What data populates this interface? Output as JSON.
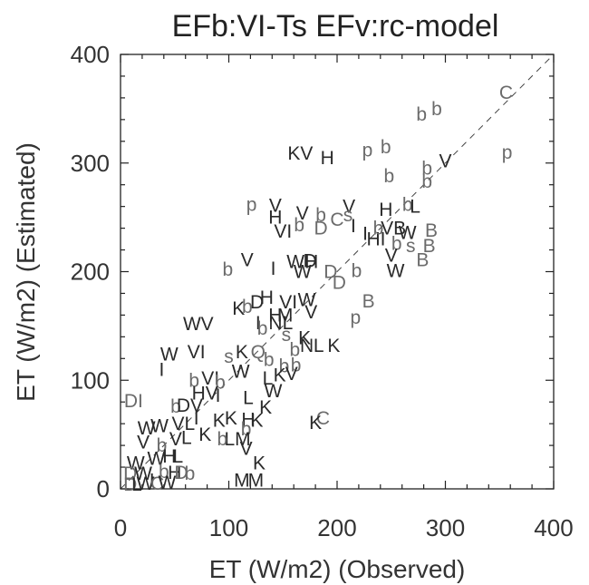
{
  "chart_data": {
    "type": "scatter",
    "title": "EFb:VI-Ts  EFv:rc-model",
    "xlabel": "ET (W/m2)  (Observed)",
    "ylabel": "ET (W/m2)  (Estimated)",
    "xlim": [
      0,
      400
    ],
    "ylim": [
      0,
      400
    ],
    "xticks": [
      0,
      100,
      200,
      300,
      400
    ],
    "yticks": [
      0,
      100,
      200,
      300,
      400
    ],
    "reference_line": "1:1 dashed",
    "grid": false,
    "colors": {
      "dark": "#2a2a2a",
      "gray": "#6b6b6b"
    },
    "points": [
      {
        "label": "C",
        "x": 356,
        "y": 365,
        "shade": "gray"
      },
      {
        "label": "p",
        "x": 357,
        "y": 310,
        "shade": "gray"
      },
      {
        "label": "b",
        "x": 278,
        "y": 345,
        "shade": "gray"
      },
      {
        "label": "b",
        "x": 292,
        "y": 350,
        "shade": "gray"
      },
      {
        "label": "b",
        "x": 245,
        "y": 315,
        "shade": "gray"
      },
      {
        "label": "p",
        "x": 228,
        "y": 312,
        "shade": "gray"
      },
      {
        "label": "KV",
        "x": 166,
        "y": 309,
        "shade": "dark"
      },
      {
        "label": "H",
        "x": 191,
        "y": 305,
        "shade": "dark"
      },
      {
        "label": "b",
        "x": 283,
        "y": 295,
        "shade": "gray"
      },
      {
        "label": "b",
        "x": 283,
        "y": 283,
        "shade": "gray"
      },
      {
        "label": "V",
        "x": 300,
        "y": 302,
        "shade": "dark"
      },
      {
        "label": "b",
        "x": 248,
        "y": 288,
        "shade": "gray"
      },
      {
        "label": "V",
        "x": 211,
        "y": 260,
        "shade": "dark"
      },
      {
        "label": "p",
        "x": 121,
        "y": 262,
        "shade": "gray"
      },
      {
        "label": "V",
        "x": 143,
        "y": 261,
        "shade": "dark"
      },
      {
        "label": "V",
        "x": 168,
        "y": 254,
        "shade": "dark"
      },
      {
        "label": "H",
        "x": 143,
        "y": 250,
        "shade": "dark"
      },
      {
        "label": "VI",
        "x": 150,
        "y": 237,
        "shade": "dark"
      },
      {
        "label": "b",
        "x": 165,
        "y": 243,
        "shade": "gray"
      },
      {
        "label": "b",
        "x": 185,
        "y": 252,
        "shade": "gray"
      },
      {
        "label": "D",
        "x": 185,
        "y": 240,
        "shade": "gray"
      },
      {
        "label": "C",
        "x": 200,
        "y": 248,
        "shade": "gray"
      },
      {
        "label": "s",
        "x": 210,
        "y": 252,
        "shade": "gray"
      },
      {
        "label": "I",
        "x": 215,
        "y": 242,
        "shade": "dark"
      },
      {
        "label": "H",
        "x": 245,
        "y": 257,
        "shade": "dark"
      },
      {
        "label": "b",
        "x": 265,
        "y": 262,
        "shade": "gray"
      },
      {
        "label": "L",
        "x": 272,
        "y": 260,
        "shade": "dark"
      },
      {
        "label": "I",
        "x": 226,
        "y": 235,
        "shade": "dark"
      },
      {
        "label": "HI",
        "x": 236,
        "y": 230,
        "shade": "dark"
      },
      {
        "label": "b",
        "x": 238,
        "y": 240,
        "shade": "gray"
      },
      {
        "label": "VB",
        "x": 252,
        "y": 240,
        "shade": "dark"
      },
      {
        "label": "W",
        "x": 265,
        "y": 236,
        "shade": "dark"
      },
      {
        "label": "B",
        "x": 287,
        "y": 238,
        "shade": "gray"
      },
      {
        "label": "b",
        "x": 255,
        "y": 226,
        "shade": "gray"
      },
      {
        "label": "s",
        "x": 268,
        "y": 224,
        "shade": "gray"
      },
      {
        "label": "B",
        "x": 285,
        "y": 224,
        "shade": "gray"
      },
      {
        "label": "V",
        "x": 250,
        "y": 215,
        "shade": "dark"
      },
      {
        "label": "B",
        "x": 279,
        "y": 211,
        "shade": "gray"
      },
      {
        "label": "W",
        "x": 254,
        "y": 201,
        "shade": "dark"
      },
      {
        "label": "V",
        "x": 117,
        "y": 211,
        "shade": "dark"
      },
      {
        "label": "b",
        "x": 99,
        "y": 202,
        "shade": "gray"
      },
      {
        "label": "I",
        "x": 141,
        "y": 203,
        "shade": "dark"
      },
      {
        "label": "WH",
        "x": 168,
        "y": 209,
        "shade": "dark"
      },
      {
        "label": "D",
        "x": 175,
        "y": 210,
        "shade": "dark"
      },
      {
        "label": "W",
        "x": 168,
        "y": 200,
        "shade": "dark"
      },
      {
        "label": "D",
        "x": 194,
        "y": 200,
        "shade": "gray"
      },
      {
        "label": "b",
        "x": 218,
        "y": 201,
        "shade": "gray"
      },
      {
        "label": "D",
        "x": 202,
        "y": 190,
        "shade": "gray"
      },
      {
        "label": "B",
        "x": 229,
        "y": 173,
        "shade": "gray"
      },
      {
        "label": "p",
        "x": 217,
        "y": 158,
        "shade": "gray"
      },
      {
        "label": "K",
        "x": 109,
        "y": 166,
        "shade": "dark"
      },
      {
        "label": "b",
        "x": 117,
        "y": 168,
        "shade": "gray"
      },
      {
        "label": "D",
        "x": 126,
        "y": 172,
        "shade": "dark"
      },
      {
        "label": "H",
        "x": 135,
        "y": 176,
        "shade": "dark"
      },
      {
        "label": "VI",
        "x": 155,
        "y": 172,
        "shade": "dark"
      },
      {
        "label": "W",
        "x": 172,
        "y": 174,
        "shade": "dark"
      },
      {
        "label": "H",
        "x": 143,
        "y": 160,
        "shade": "dark"
      },
      {
        "label": "M",
        "x": 152,
        "y": 160,
        "shade": "dark"
      },
      {
        "label": "V",
        "x": 176,
        "y": 163,
        "shade": "dark"
      },
      {
        "label": "I",
        "x": 127,
        "y": 153,
        "shade": "dark"
      },
      {
        "label": "W",
        "x": 66,
        "y": 152,
        "shade": "dark"
      },
      {
        "label": "V",
        "x": 80,
        "y": 152,
        "shade": "dark"
      },
      {
        "label": "b",
        "x": 131,
        "y": 148,
        "shade": "gray"
      },
      {
        "label": "NL",
        "x": 148,
        "y": 153,
        "shade": "dark"
      },
      {
        "label": "s",
        "x": 153,
        "y": 142,
        "shade": "gray"
      },
      {
        "label": "K",
        "x": 170,
        "y": 139,
        "shade": "dark"
      },
      {
        "label": "N",
        "x": 172,
        "y": 132,
        "shade": "dark"
      },
      {
        "label": "L",
        "x": 183,
        "y": 132,
        "shade": "dark"
      },
      {
        "label": "K",
        "x": 197,
        "y": 132,
        "shade": "dark"
      },
      {
        "label": "b",
        "x": 161,
        "y": 128,
        "shade": "gray"
      },
      {
        "label": "W",
        "x": 45,
        "y": 124,
        "shade": "dark"
      },
      {
        "label": "VI",
        "x": 70,
        "y": 126,
        "shade": "dark"
      },
      {
        "label": "K",
        "x": 112,
        "y": 126,
        "shade": "dark"
      },
      {
        "label": "s",
        "x": 100,
        "y": 122,
        "shade": "gray"
      },
      {
        "label": "Q",
        "x": 127,
        "y": 126,
        "shade": "gray"
      },
      {
        "label": "b",
        "x": 137,
        "y": 119,
        "shade": "gray"
      },
      {
        "label": "I",
        "x": 38,
        "y": 110,
        "shade": "dark"
      },
      {
        "label": "b",
        "x": 151,
        "y": 113,
        "shade": "gray"
      },
      {
        "label": "b",
        "x": 162,
        "y": 114,
        "shade": "gray"
      },
      {
        "label": "K",
        "x": 147,
        "y": 105,
        "shade": "dark"
      },
      {
        "label": "V",
        "x": 158,
        "y": 106,
        "shade": "dark"
      },
      {
        "label": "b",
        "x": 68,
        "y": 100,
        "shade": "gray"
      },
      {
        "label": "VI",
        "x": 83,
        "y": 102,
        "shade": "dark"
      },
      {
        "label": "b",
        "x": 92,
        "y": 98,
        "shade": "gray"
      },
      {
        "label": "W",
        "x": 111,
        "y": 108,
        "shade": "dark"
      },
      {
        "label": "L",
        "x": 136,
        "y": 102,
        "shade": "dark"
      },
      {
        "label": "W",
        "x": 141,
        "y": 90,
        "shade": "dark"
      },
      {
        "label": "DI",
        "x": 12,
        "y": 81,
        "shade": "gray"
      },
      {
        "label": "b",
        "x": 51,
        "y": 76,
        "shade": "gray"
      },
      {
        "label": "DV",
        "x": 64,
        "y": 77,
        "shade": "dark"
      },
      {
        "label": "HV",
        "x": 78,
        "y": 88,
        "shade": "dark"
      },
      {
        "label": "I",
        "x": 90,
        "y": 86,
        "shade": "dark"
      },
      {
        "label": "L",
        "x": 118,
        "y": 84,
        "shade": "dark"
      },
      {
        "label": "K",
        "x": 134,
        "y": 75,
        "shade": "dark"
      },
      {
        "label": "C",
        "x": 187,
        "y": 65,
        "shade": "gray"
      },
      {
        "label": "K",
        "x": 180,
        "y": 61,
        "shade": "dark"
      },
      {
        "label": "W",
        "x": 24,
        "y": 56,
        "shade": "dark"
      },
      {
        "label": "W",
        "x": 36,
        "y": 58,
        "shade": "dark"
      },
      {
        "label": "VL",
        "x": 58,
        "y": 60,
        "shade": "dark"
      },
      {
        "label": "I",
        "x": 70,
        "y": 65,
        "shade": "dark"
      },
      {
        "label": "K",
        "x": 91,
        "y": 63,
        "shade": "dark"
      },
      {
        "label": "K",
        "x": 102,
        "y": 65,
        "shade": "dark"
      },
      {
        "label": "H",
        "x": 118,
        "y": 64,
        "shade": "dark"
      },
      {
        "label": "K",
        "x": 126,
        "y": 63,
        "shade": "dark"
      },
      {
        "label": "b",
        "x": 116,
        "y": 55,
        "shade": "gray"
      },
      {
        "label": "V",
        "x": 21,
        "y": 43,
        "shade": "dark"
      },
      {
        "label": "b",
        "x": 38,
        "y": 40,
        "shade": "gray"
      },
      {
        "label": "V",
        "x": 51,
        "y": 46,
        "shade": "dark"
      },
      {
        "label": "L",
        "x": 61,
        "y": 47,
        "shade": "dark"
      },
      {
        "label": "K",
        "x": 78,
        "y": 50,
        "shade": "dark"
      },
      {
        "label": "LM",
        "x": 108,
        "y": 46,
        "shade": "dark"
      },
      {
        "label": "b",
        "x": 94,
        "y": 46,
        "shade": "gray"
      },
      {
        "label": "V",
        "x": 116,
        "y": 37,
        "shade": "dark"
      },
      {
        "label": "W",
        "x": 14,
        "y": 24,
        "shade": "dark"
      },
      {
        "label": "W",
        "x": 33,
        "y": 28,
        "shade": "dark"
      },
      {
        "label": "H",
        "x": 45,
        "y": 30,
        "shade": "dark"
      },
      {
        "label": "L",
        "x": 53,
        "y": 30,
        "shade": "dark"
      },
      {
        "label": "K",
        "x": 128,
        "y": 24,
        "shade": "dark"
      },
      {
        "label": "D",
        "x": 9,
        "y": 14,
        "shade": "gray"
      },
      {
        "label": "W",
        "x": 21,
        "y": 14,
        "shade": "dark"
      },
      {
        "label": "b",
        "x": 40,
        "y": 16,
        "shade": "gray"
      },
      {
        "label": "H",
        "x": 50,
        "y": 15,
        "shade": "dark"
      },
      {
        "label": "D",
        "x": 56,
        "y": 15,
        "shade": "gray"
      },
      {
        "label": "b",
        "x": 64,
        "y": 14,
        "shade": "gray"
      },
      {
        "label": "I",
        "x": 29,
        "y": 8,
        "shade": "dark"
      },
      {
        "label": "D",
        "x": 9,
        "y": 4,
        "shade": "gray"
      },
      {
        "label": "L",
        "x": 15,
        "y": 4,
        "shade": "dark"
      },
      {
        "label": "W",
        "x": 23,
        "y": 5,
        "shade": "dark"
      },
      {
        "label": "C",
        "x": 34,
        "y": 5,
        "shade": "gray"
      },
      {
        "label": "W",
        "x": 43,
        "y": 6,
        "shade": "dark"
      },
      {
        "label": "M",
        "x": 112,
        "y": 8,
        "shade": "dark"
      },
      {
        "label": "M",
        "x": 125,
        "y": 8,
        "shade": "dark"
      }
    ]
  }
}
